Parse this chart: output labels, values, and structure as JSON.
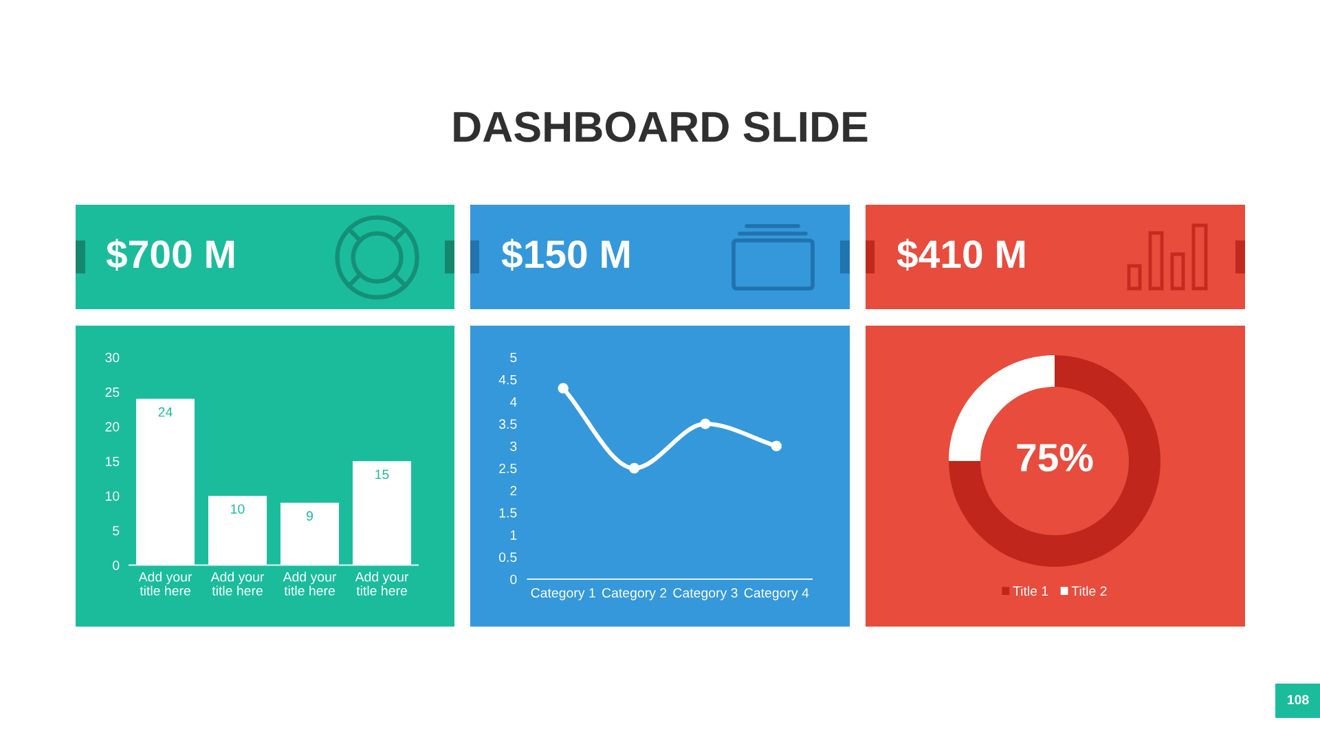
{
  "chart_data": [
    {
      "type": "other",
      "title": "DASHBOARD SLIDE",
      "annotations": [
        "108"
      ]
    },
    {
      "type": "other",
      "annotations": [
        "$700 M"
      ]
    },
    {
      "type": "other",
      "annotations": [
        "$150 M"
      ]
    },
    {
      "type": "other",
      "annotations": [
        "$410 M"
      ]
    },
    {
      "type": "bar",
      "categories": [
        "Add your\ntitle here",
        "Add your\ntitle here",
        "Add your\ntitle here",
        "Add your\ntitle here"
      ],
      "values": [
        24,
        10,
        9,
        15
      ],
      "color": "#ffffff",
      "ylim": [
        0,
        30
      ],
      "yticks": [
        0,
        5,
        10,
        15,
        20,
        25,
        30
      ],
      "data_labels": true
    },
    {
      "type": "line",
      "categories": [
        "Category 1",
        "Category 2",
        "Category 3",
        "Category 4"
      ],
      "values": [
        4.3,
        2.5,
        3.5,
        3.0
      ],
      "color": "#ffffff",
      "marker": "circle",
      "line_style": "solid",
      "ylim": [
        0,
        5
      ],
      "yticks": [
        0,
        0.5,
        1,
        1.5,
        2,
        2.5,
        3,
        3.5,
        4,
        4.5,
        5
      ]
    },
    {
      "type": "donut",
      "categories": [
        "Title 1",
        "Title 2"
      ],
      "values": [
        75,
        25
      ],
      "colors": [
        "#c0261b",
        "#ffffff"
      ],
      "legend": "bottom",
      "annotations": [
        "75%"
      ]
    }
  ]
}
